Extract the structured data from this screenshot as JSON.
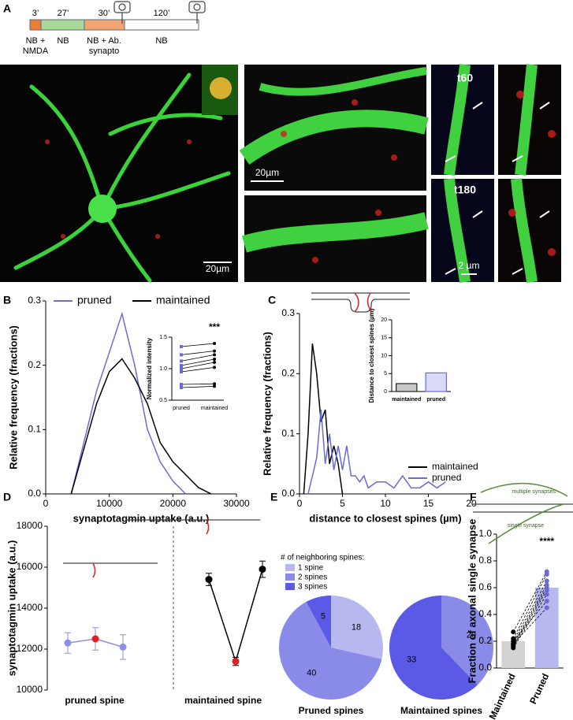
{
  "panel_labels": [
    "A",
    "B",
    "C",
    "D",
    "E",
    "F"
  ],
  "panel_a": {
    "durations": [
      "3’",
      "27’",
      "30’",
      "120’"
    ],
    "conditions": [
      [
        "NB +",
        "NMDA"
      ],
      [
        "NB"
      ],
      [
        "NB + Ab.",
        "synapto"
      ],
      [
        "NB"
      ]
    ],
    "scale_bars": [
      "20µm",
      "20µm",
      "2 µm"
    ],
    "timepoints": [
      "t60",
      "t180"
    ]
  },
  "chart_data": [
    {
      "type": "line",
      "xlabel": "synaptotagmin uptake (a.u.)",
      "ylabel": "Relative frequency (fractions)",
      "legend": "top",
      "x": [
        4000,
        6000,
        8000,
        10000,
        12000,
        14000,
        16000,
        18000,
        20000,
        22000,
        24000,
        26000
      ],
      "series": [
        {
          "name": "pruned",
          "color": "#6b6bd6",
          "values": [
            0,
            0.08,
            0.16,
            0.22,
            0.28,
            0.2,
            0.1,
            0.05,
            0.02,
            0,
            null,
            null
          ]
        },
        {
          "name": "maintained",
          "color": "#000000",
          "values": [
            0,
            0.07,
            0.14,
            0.19,
            0.21,
            0.18,
            0.14,
            0.08,
            0.05,
            0.03,
            0.01,
            0
          ]
        }
      ],
      "xlim": [
        0,
        30000
      ],
      "xticks": [
        0,
        10000,
        20000,
        30000
      ],
      "ylim": [
        0,
        0.3
      ],
      "yticks": [
        {
          "value": 0,
          "label": "0.0"
        },
        0.1,
        0.2,
        0.3
      ]
    },
    {
      "type": "paired",
      "ylabel": "Normalized intensity",
      "annotation": "***",
      "categories": [
        "pruned",
        "maintained"
      ],
      "colors": [
        "#6b6bd6",
        "#000000"
      ],
      "pairs": [
        [
          1.35,
          1.4
        ],
        [
          1.22,
          1.28
        ],
        [
          1.12,
          1.22
        ],
        [
          1.05,
          1.15
        ],
        [
          1.0,
          1.1
        ],
        [
          0.95,
          1.02
        ],
        [
          0.75,
          0.76
        ],
        [
          0.7,
          0.72
        ]
      ],
      "ylim": [
        0.5,
        1.5
      ],
      "yticks": [
        0.5,
        {
          "value": 1,
          "label": "1.0"
        },
        1.5
      ]
    },
    {
      "type": "line",
      "xlabel": "distance to closest spines (µm)",
      "ylabel": "Relative frequency (fractions)",
      "legend": "bottom-right",
      "x": [
        0.5,
        1,
        1.5,
        2,
        2.5,
        3,
        3.5,
        4,
        4.5,
        5,
        5.5,
        6,
        6.5,
        7,
        7.5,
        8,
        9,
        10,
        11,
        12,
        13,
        14,
        15,
        16,
        17
      ],
      "series": [
        {
          "name": "maintained",
          "color": "#000000",
          "values": [
            0,
            0.1,
            0.25,
            0.2,
            0.12,
            0.14,
            0.05,
            0.08,
            0.05,
            0,
            null,
            null,
            null,
            null,
            null,
            null,
            null,
            null,
            null,
            null,
            null,
            null,
            null,
            null,
            null
          ]
        },
        {
          "name": "pruned",
          "color": "#6b6bd6",
          "values": [
            null,
            0,
            0.03,
            0.06,
            0.14,
            0.05,
            0.1,
            0.04,
            0.08,
            0.04,
            0.08,
            0.03,
            0.03,
            0.02,
            0.03,
            0.01,
            0.02,
            0.02,
            0.01,
            0.03,
            0.01,
            0.01,
            0.02,
            0.01,
            0.02
          ]
        }
      ],
      "xlim": [
        0,
        20
      ],
      "xticks": [
        0,
        5,
        10,
        15,
        20
      ],
      "ylim": [
        0,
        0.3
      ],
      "yticks": [
        {
          "value": 0,
          "label": "0.0"
        },
        0.1,
        0.2,
        0.3
      ]
    },
    {
      "type": "bar",
      "ylabel": "Distance to closest spines (µm)",
      "categories": [
        "maintained",
        "pruned"
      ],
      "values": [
        2.2,
        5.2
      ],
      "colors": [
        "#222222",
        "#6b6bd6"
      ],
      "ylim": [
        0,
        20
      ],
      "yticks": [
        0,
        5,
        10,
        15,
        20
      ]
    },
    {
      "type": "errorbar",
      "ylabel": "synaptotagmin uptake (a.u.)",
      "highlight_color": "#e02020",
      "groups": [
        {
          "label": "pruned spine",
          "color": "#8e8ee6",
          "values": [
            12300,
            12500,
            12100
          ],
          "errors": [
            500,
            550,
            600
          ]
        },
        {
          "label": "maintained spine",
          "color": "#000000",
          "values": [
            15400,
            11400,
            15900
          ],
          "errors": [
            300,
            200,
            400
          ]
        }
      ],
      "ylim": [
        10000,
        18000
      ],
      "yticks": [
        10000,
        12000,
        14000,
        16000,
        18000
      ]
    },
    {
      "type": "pie",
      "legend_title": "# of neighboring spines:",
      "categories": [
        "1 spine",
        "2 spines",
        "3 spines"
      ],
      "colors": [
        "#b8b8f0",
        "#8a8ae8",
        "#5a5ae6"
      ],
      "series": [
        {
          "name": "Pruned spines",
          "values": [
            18,
            40,
            5
          ]
        },
        {
          "name": "Maintained spines",
          "values": [
            0,
            20,
            33
          ]
        }
      ]
    },
    {
      "type": "bar",
      "ylabel": "Fraction of axonal single synapse",
      "annotation": "****",
      "diagram_labels": [
        "multiple synapses",
        "single synapse"
      ],
      "categories": [
        "Maintained",
        "Pruned"
      ],
      "values": [
        0.2,
        0.6
      ],
      "colors": [
        "#d3d3d3",
        "#b8b8f0"
      ],
      "dot_colors": [
        "#000000",
        "#6b6bd6"
      ],
      "pairs": [
        [
          0.27,
          0.72
        ],
        [
          0.22,
          0.7
        ],
        [
          0.2,
          0.65
        ],
        [
          0.18,
          0.62
        ],
        [
          0.17,
          0.6
        ],
        [
          0.16,
          0.58
        ],
        [
          0.15,
          0.55
        ],
        [
          0.2,
          0.5
        ],
        [
          0.18,
          0.45
        ]
      ],
      "ylim": [
        0,
        1
      ],
      "yticks": [
        {
          "value": 0,
          "label": "0.0"
        },
        0.2,
        0.4,
        0.6,
        0.8,
        {
          "value": 1,
          "label": "1.0"
        }
      ]
    }
  ]
}
